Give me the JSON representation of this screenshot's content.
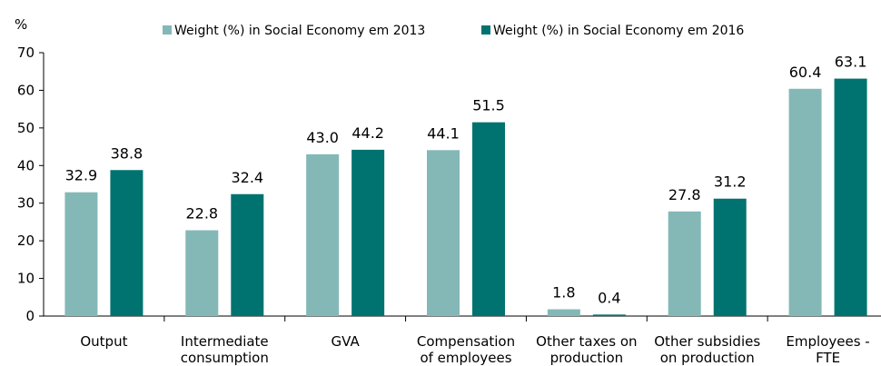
{
  "chart_data": {
    "type": "bar",
    "unit_label": "%",
    "categories": [
      [
        "Output"
      ],
      [
        "Intermediate",
        "consumption"
      ],
      [
        "GVA"
      ],
      [
        "Compensation",
        "of employees"
      ],
      [
        "Other taxes on",
        "production"
      ],
      [
        "Other subsidies",
        "on production"
      ],
      [
        "Employees -",
        "FTE"
      ]
    ],
    "series": [
      {
        "name": "Weight (%) in Social Economy em 2013",
        "color": "#84b8b7",
        "values": [
          32.9,
          22.8,
          43.0,
          44.1,
          1.8,
          27.8,
          60.4
        ]
      },
      {
        "name": "Weight (%) in Social Economy em 2016",
        "color": "#007370",
        "values": [
          38.8,
          32.4,
          44.2,
          51.5,
          0.4,
          31.2,
          63.1
        ]
      }
    ],
    "ylim": [
      0,
      70
    ],
    "yticks": [
      0,
      10,
      20,
      30,
      40,
      50,
      60,
      70
    ],
    "grid": false,
    "legend_position": "top",
    "value_format_decimals": 1
  }
}
